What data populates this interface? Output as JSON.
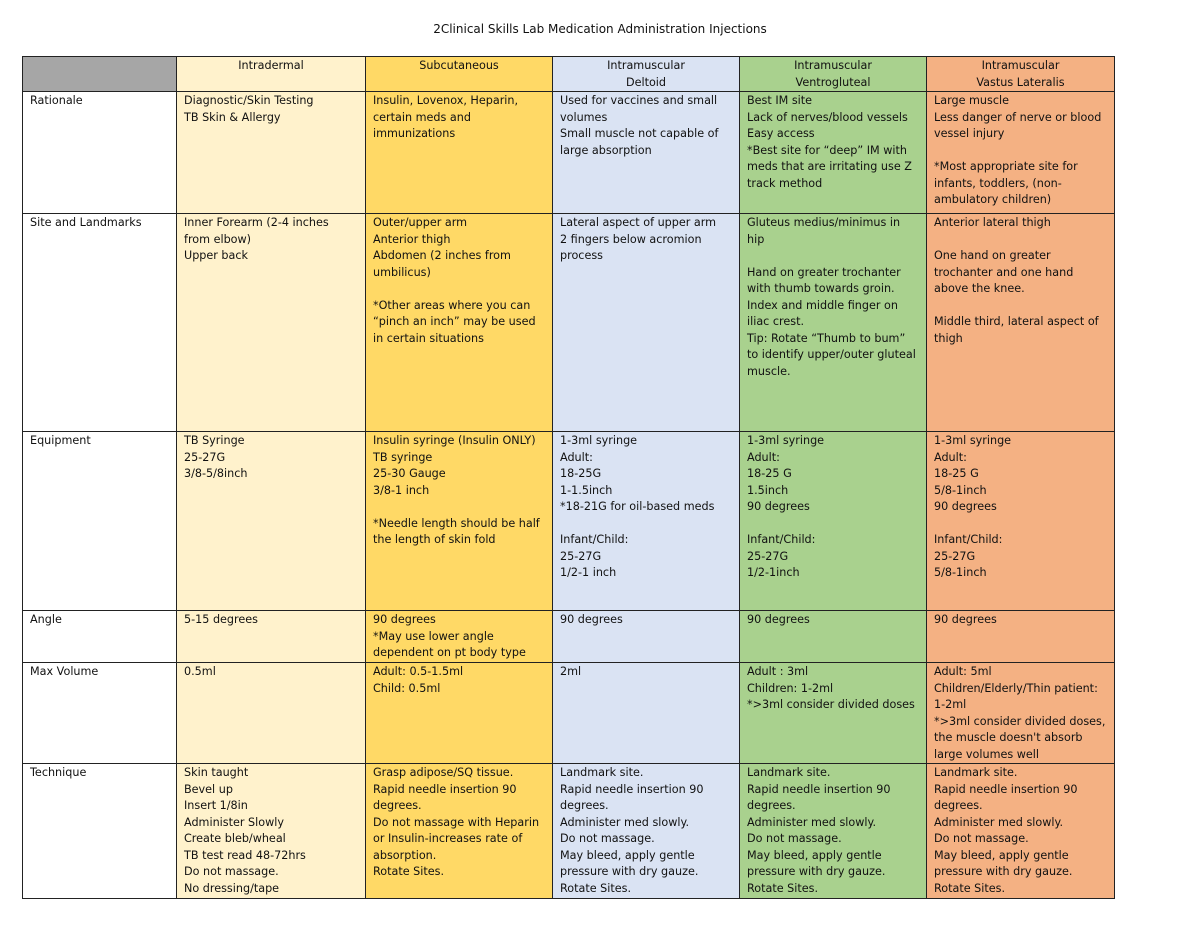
{
  "title": "2Clinical Skills Lab Medication Administration Injections",
  "columns": [
    "",
    "Intradermal",
    "Subcutaneous",
    "Intramuscular\nDeltoid",
    "Intramuscular\nVentrogluteal",
    "Intramuscular\nVastus Lateralis"
  ],
  "column_colors": [
    "#a6a6a6",
    "#fff2cc",
    "#ffd966",
    "#dae3f3",
    "#a9d18e",
    "#f4b183"
  ],
  "rows": [
    {
      "label": "Rationale",
      "cells": [
        "Diagnostic/Skin Testing\nTB Skin & Allergy",
        "Insulin, Lovenox, Heparin, certain meds and immunizations",
        "Used for vaccines and small volumes\nSmall muscle not capable of large absorption",
        "Best IM site\nLack of nerves/blood vessels\nEasy access\n*Best site for “deep” IM with meds that are irritating use Z track method",
        "Large muscle\nLess danger of nerve or blood vessel injury\n\n*Most appropriate site for infants, toddlers, (non-ambulatory children)"
      ]
    },
    {
      "label": "Site and Landmarks",
      "cells": [
        "Inner Forearm (2-4 inches from elbow)\nUpper back",
        "Outer/upper arm\nAnterior thigh\nAbdomen (2 inches from umbilicus)\n\n*Other areas where you can “pinch an inch” may be used in certain situations",
        "Lateral aspect of upper arm\n2 fingers below acromion process",
        "Gluteus medius/minimus in hip\n\nHand on greater trochanter with thumb towards groin. Index and middle finger on iliac crest.\nTip: Rotate “Thumb to bum” to identify upper/outer gluteal muscle.",
        "Anterior lateral thigh\n\nOne hand on greater trochanter and one hand above the knee.\n\nMiddle third, lateral aspect of thigh"
      ]
    },
    {
      "label": "Equipment",
      "cells": [
        "TB Syringe\n25-27G\n3/8-5/8inch",
        "Insulin syringe (Insulin ONLY)\nTB syringe\n25-30 Gauge\n3/8-1 inch\n\n*Needle length should be half the length of skin fold",
        "1-3ml syringe\nAdult:\n18-25G\n1-1.5inch\n*18-21G for oil-based meds\n\nInfant/Child:\n25-27G\n1/2-1 inch",
        "1-3ml syringe\nAdult:\n18-25 G\n1.5inch\n90 degrees\n\nInfant/Child:\n25-27G\n1/2-1inch",
        "1-3ml syringe\nAdult:\n18-25 G\n5/8-1inch\n90 degrees\n\nInfant/Child:\n25-27G\n5/8-1inch"
      ]
    },
    {
      "label": "Angle",
      "cells": [
        "5-15 degrees",
        "90 degrees\n*May use lower angle dependent on pt body type",
        "90 degrees",
        "90 degrees",
        "90 degrees"
      ]
    },
    {
      "label": "Max Volume",
      "cells": [
        "0.5ml",
        "Adult: 0.5-1.5ml\nChild: 0.5ml",
        "2ml",
        "Adult : 3ml\nChildren: 1-2ml\n*>3ml consider divided doses",
        "Adult: 5ml\nChildren/Elderly/Thin patient: 1-2ml\n*>3ml consider divided doses, the muscle doesn't absorb large volumes well"
      ]
    },
    {
      "label": "Technique",
      "cells": [
        "Skin taught\nBevel up\nInsert 1/8in\nAdminister Slowly\nCreate bleb/wheal\nTB test read 48-72hrs\nDo not massage.\nNo dressing/tape",
        "Grasp adipose/SQ tissue.\nRapid needle insertion 90 degrees.\nDo not massage with Heparin or Insulin-increases rate of absorption.\nRotate Sites.",
        "Landmark site.\nRapid needle insertion 90 degrees.\nAdminister med slowly.\nDo not massage.\nMay bleed, apply gentle pressure with dry gauze.\nRotate Sites.",
        "Landmark site.\nRapid needle insertion 90 degrees.\nAdminister med slowly.\nDo not massage.\nMay bleed, apply gentle pressure with dry gauze.\nRotate Sites.",
        "Landmark site.\nRapid needle insertion 90 degrees.\nAdminister med slowly.\nDo not massage.\nMay bleed, apply gentle pressure with dry gauze.\nRotate Sites."
      ]
    }
  ]
}
